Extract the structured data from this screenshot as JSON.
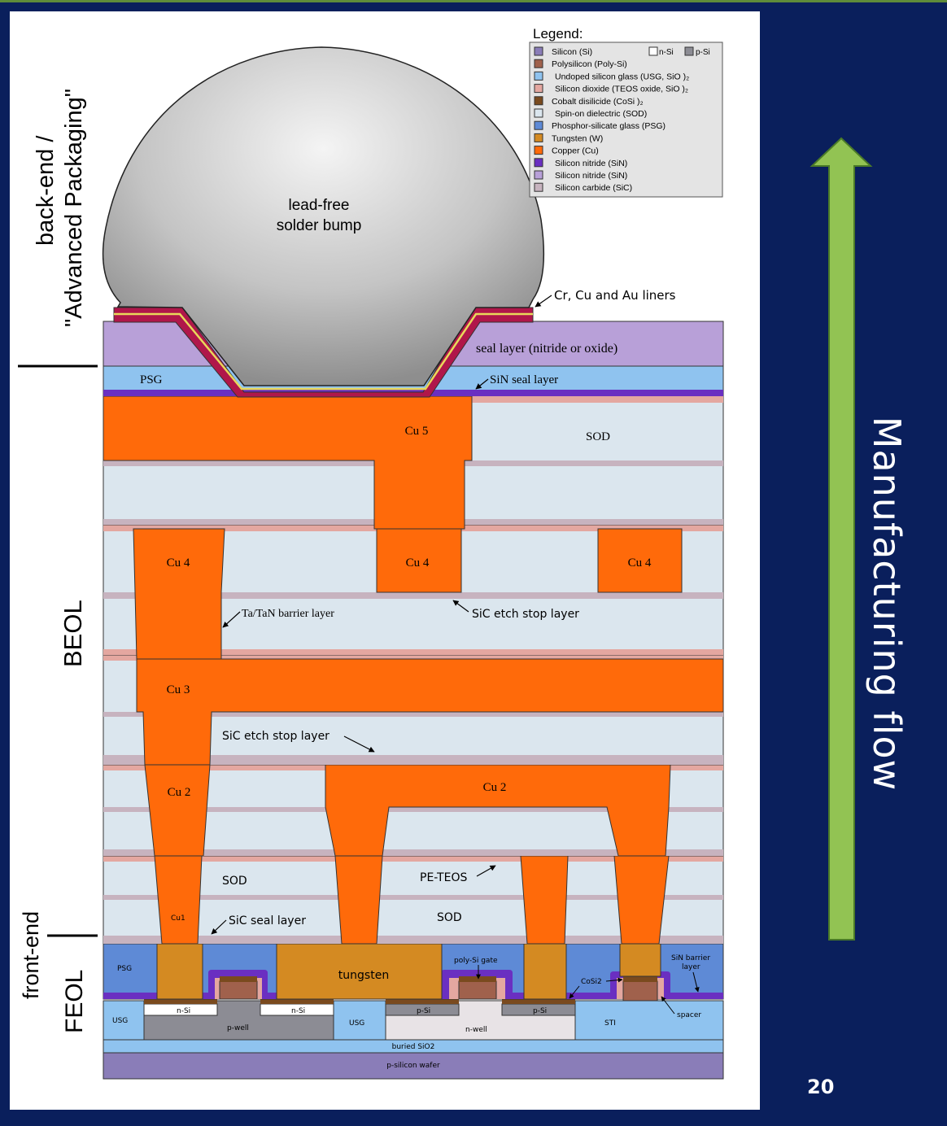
{
  "side_labels": {
    "backend_line1": "back-end /",
    "backend_line2": "\"Advanced Packaging\"",
    "beol": "BEOL",
    "front_end": "front-end",
    "feol": "FEOL"
  },
  "flow_label": "Manufacturing flow",
  "page_number": "20",
  "legend": {
    "title": "Legend:",
    "items": [
      {
        "label": "Silicon (Si)",
        "color": "#8a7db8"
      },
      {
        "label": "Polysilicon (Poly-Si)",
        "color": "#a0614c"
      },
      {
        "label": "Undoped silicon glass (USG, SiO )₂",
        "color": "#8fc3ef"
      },
      {
        "label": "Silicon dioxide (TEOS oxide, SiO )₂",
        "color": "#e4a7a0"
      },
      {
        "label": "Cobalt disilicide (CoSi )₂",
        "color": "#7a4a1e"
      },
      {
        "label": "Spin-on dielectric (SOD)",
        "color": "#dbe6ee"
      },
      {
        "label": "Phosphor-silicate glass (PSG)",
        "color": "#5e8ad6"
      },
      {
        "label": "Tungsten (W)",
        "color": "#d48a22"
      },
      {
        "label": "Copper (Cu)",
        "color": "#ff6a0a"
      },
      {
        "label": "Silicon nitride (SiN)",
        "color": "#6a2fc1"
      },
      {
        "label": "Silicon nitride (SiN)",
        "color": "#b8a0d8"
      },
      {
        "label": "Silicon carbide (SiC)",
        "color": "#c7b3bf"
      }
    ],
    "n_si": "n-Si",
    "p_si": "p-Si",
    "n_si_color": "#ffffff",
    "p_si_color": "#8c8c94"
  },
  "labels": {
    "solder_line1": "lead-free",
    "solder_line2": "solder bump",
    "liners": "Cr, Cu and Au liners",
    "seal": "seal layer (nitride or oxide)",
    "psg_top": "PSG",
    "sin_seal": "SiN seal layer",
    "cu5": "Cu 5",
    "sod_top": "SOD",
    "cu4": "Cu 4",
    "ta_tan": "Ta/TaN barrier layer",
    "sic_etch": "SiC etch stop layer",
    "cu3": "Cu 3",
    "cu2": "Cu 2",
    "sod": "SOD",
    "pe_teos": "PE-TEOS",
    "cu1": "Cu1",
    "sic_seal": "SiC seal layer",
    "psg": "PSG",
    "tungsten": "tungsten",
    "poly_gate": "poly-Si gate",
    "sin_barrier_line1": "SiN barrier",
    "sin_barrier_line2": "layer",
    "cosi2": "CoSi2",
    "n_si": "n-Si",
    "p_si": "p-Si",
    "usg": "USG",
    "p_well": "p-well",
    "n_well": "n-well",
    "sti": "STI",
    "spacer": "spacer",
    "buried": "buried SiO2",
    "wafer": "p-silicon wafer"
  },
  "colors": {
    "background": "#0a1f5c",
    "arrow": "#92c353",
    "copper": "#ff6a0a",
    "tungsten": "#d48a22"
  }
}
